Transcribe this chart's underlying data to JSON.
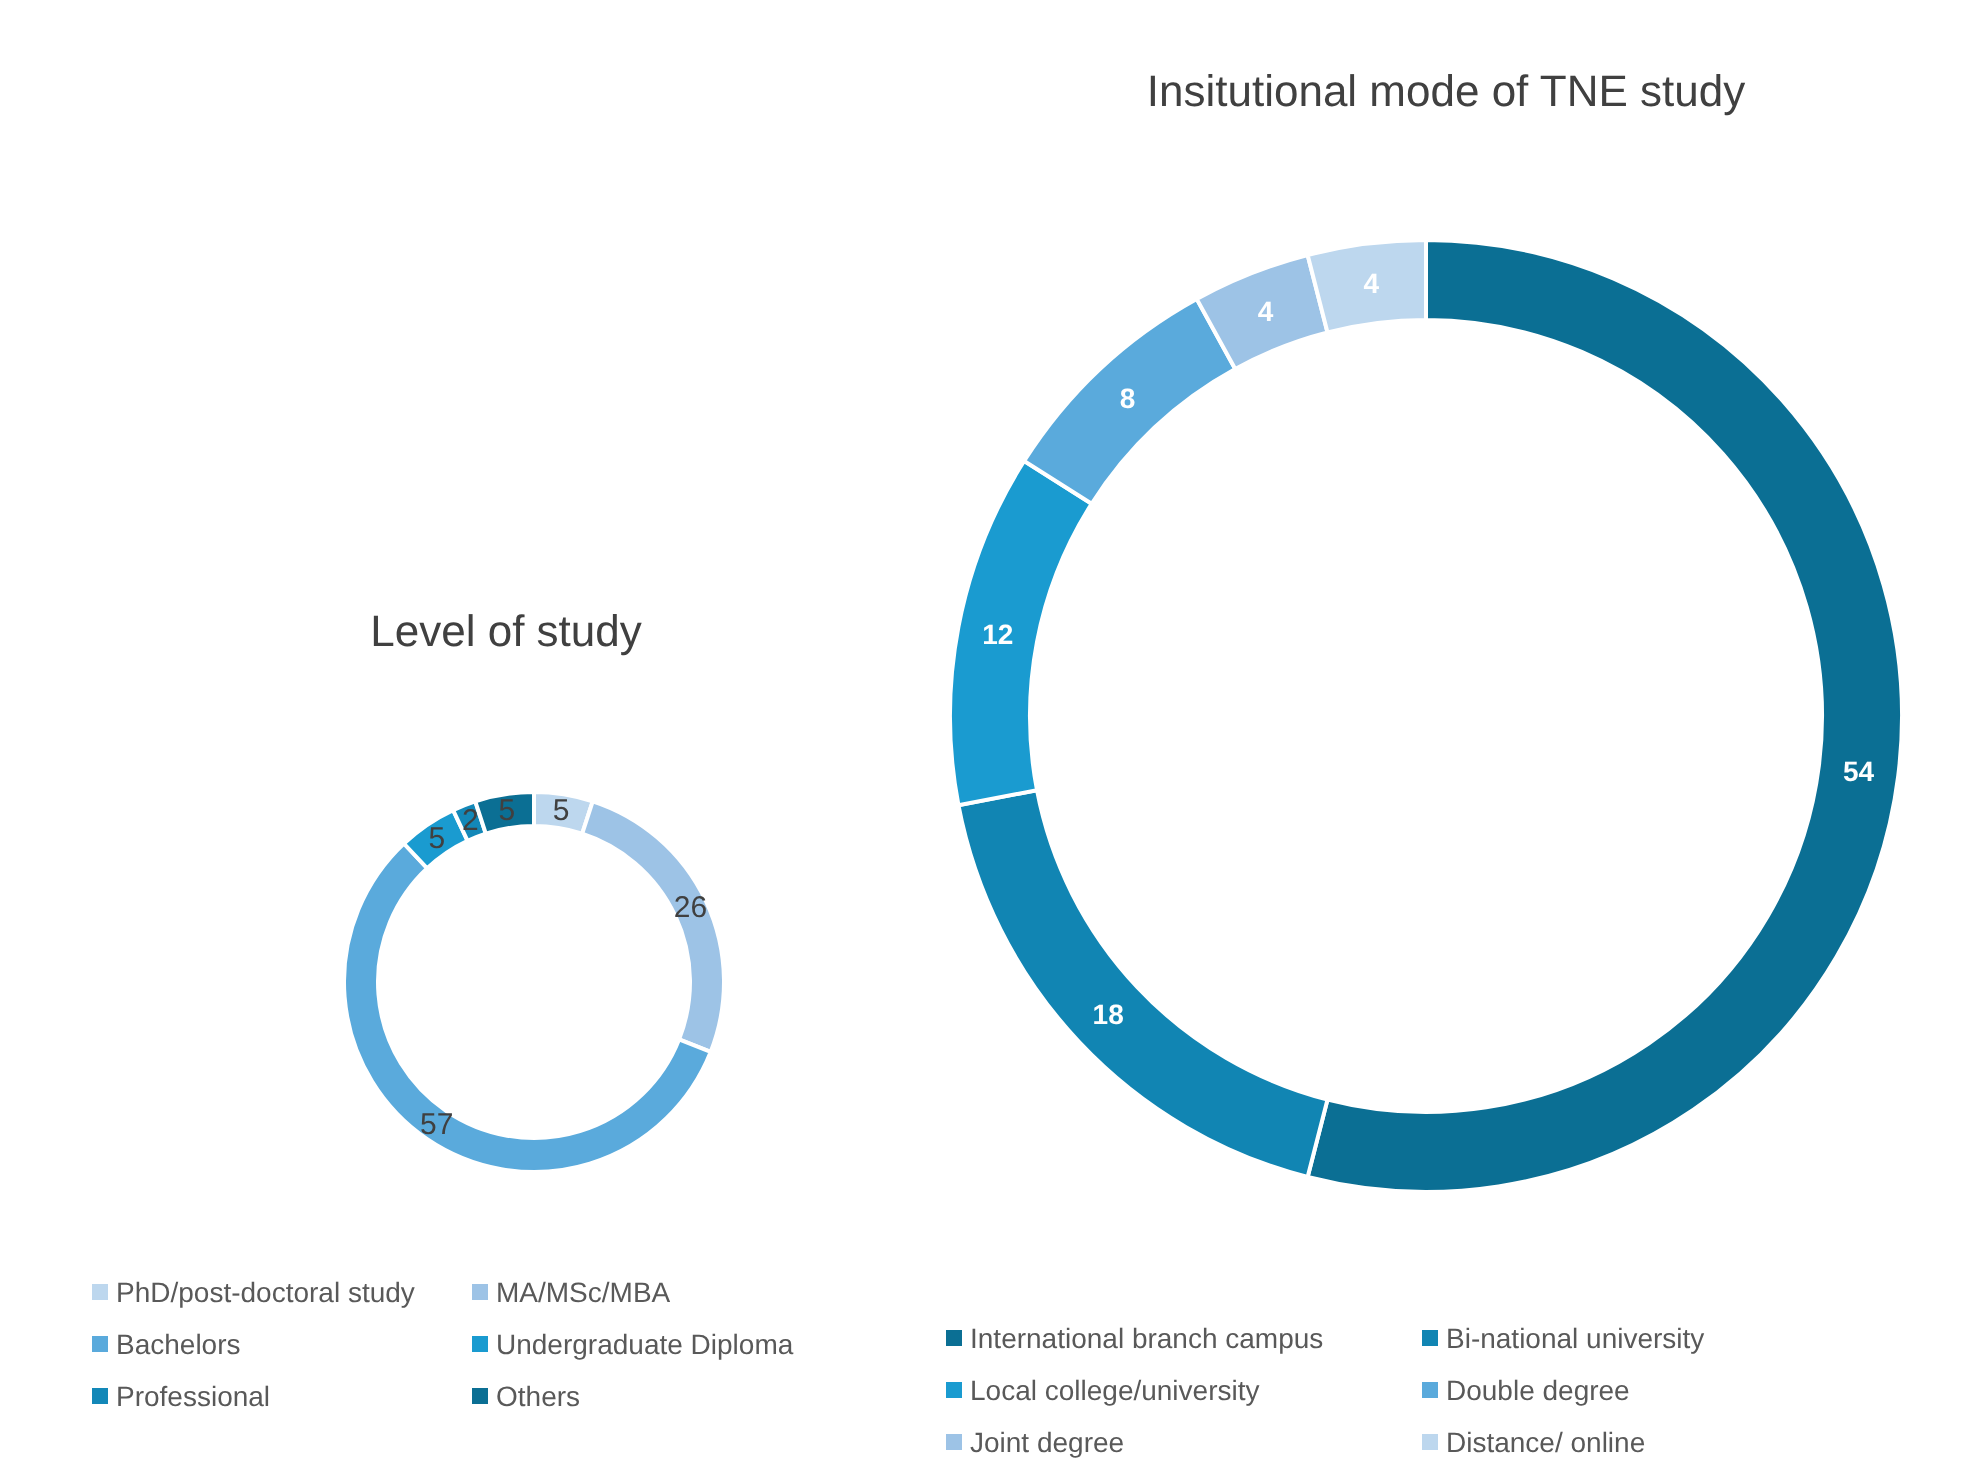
{
  "chart_data": [
    {
      "type": "donut",
      "title": "Level of study",
      "categories": [
        "PhD/post-doctoral study",
        "MA/MSc/MBA",
        "Bachelors",
        "Undergraduate Diploma",
        "Professional",
        "Others"
      ],
      "values": [
        5,
        26,
        57,
        5,
        2,
        5
      ],
      "colors": [
        "#bdd7ee",
        "#9dc3e6",
        "#5aaadc",
        "#1a9bd0",
        "#1388b8",
        "#0b6f94"
      ],
      "data_labels": true,
      "legend": "bottom"
    },
    {
      "type": "donut",
      "title": "Insitutional mode of TNE study",
      "categories": [
        "International branch campus",
        "Bi-national university",
        "Local college/university",
        "Double degree",
        "Joint degree",
        "Distance/ online"
      ],
      "values": [
        54,
        18,
        12,
        8,
        4,
        4
      ],
      "colors": [
        "#0b6f94",
        "#1185b3",
        "#1a9bd0",
        "#5aaadc",
        "#9dc3e6",
        "#bdd7ee"
      ],
      "data_labels": true,
      "legend": "bottom"
    }
  ]
}
